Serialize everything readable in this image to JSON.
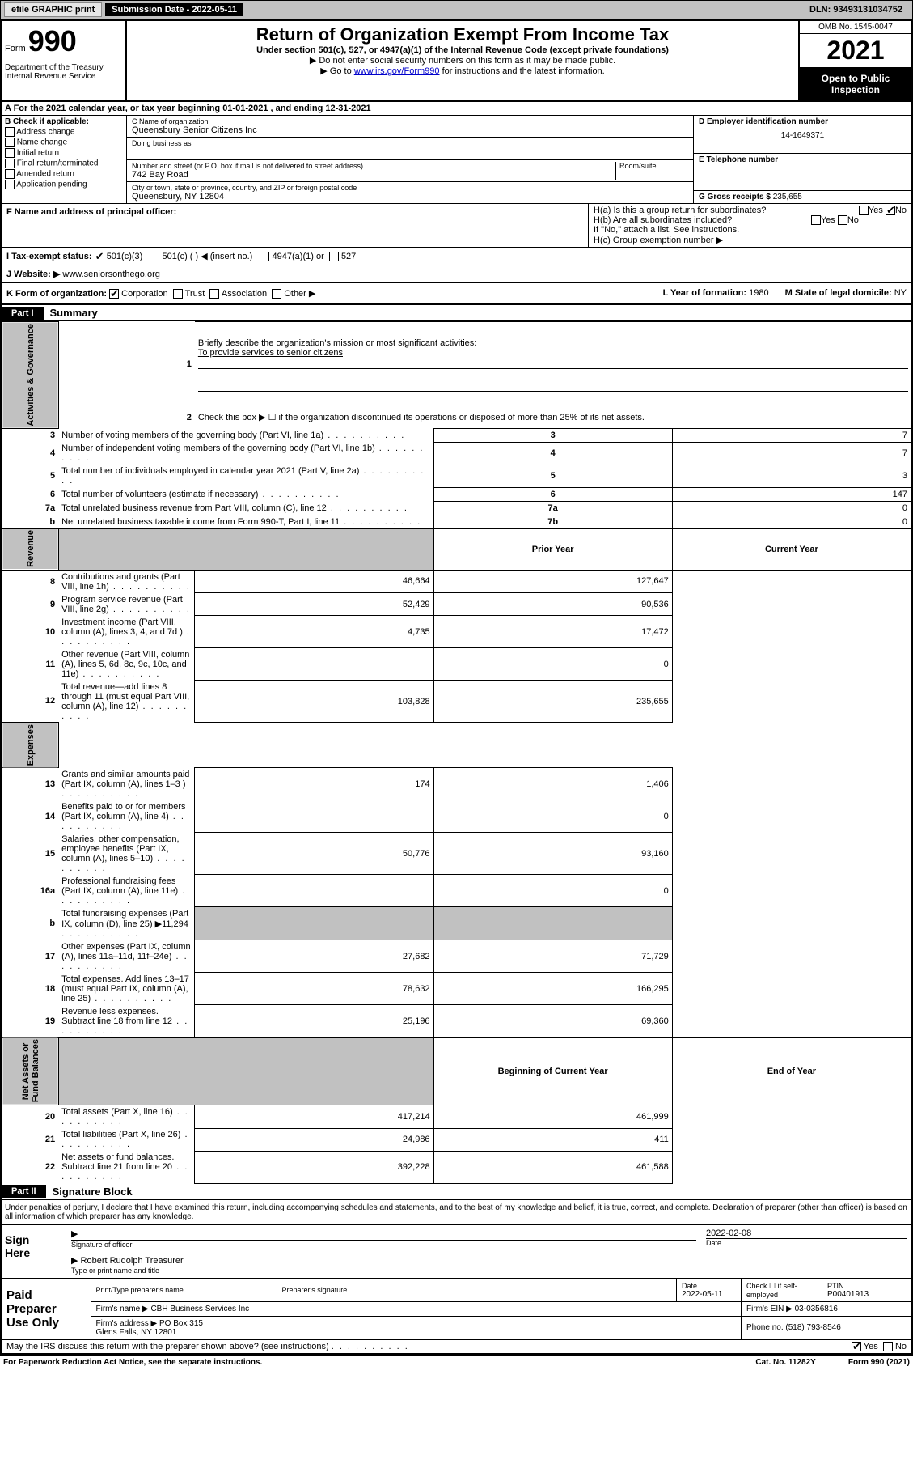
{
  "topbar": {
    "efile": "efile GRAPHIC print",
    "sub_label": "Submission Date - 2022-05-11",
    "dln": "DLN: 93493131034752"
  },
  "header": {
    "form_word": "Form",
    "form_num": "990",
    "title": "Return of Organization Exempt From Income Tax",
    "subtitle": "Under section 501(c), 527, or 4947(a)(1) of the Internal Revenue Code (except private foundations)",
    "note1": "▶ Do not enter social security numbers on this form as it may be made public.",
    "note2_pre": "▶ Go to ",
    "note2_link": "www.irs.gov/Form990",
    "note2_post": " for instructions and the latest information.",
    "dept": "Department of the Treasury\nInternal Revenue Service",
    "omb": "OMB No. 1545-0047",
    "year": "2021",
    "open_pub": "Open to Public\nInspection"
  },
  "line_a": "A For the 2021 calendar year, or tax year beginning 01-01-2021   , and ending 12-31-2021",
  "section_b": {
    "label": "B Check if applicable:",
    "items": [
      "Address change",
      "Name change",
      "Initial return",
      "Final return/terminated",
      "Amended return",
      "Application pending"
    ]
  },
  "section_c": {
    "name_label": "C Name of organization",
    "name": "Queensbury Senior Citizens Inc",
    "dba_label": "Doing business as",
    "addr_label": "Number and street (or P.O. box if mail is not delivered to street address)",
    "room_label": "Room/suite",
    "addr": "742 Bay Road",
    "city_label": "City or town, state or province, country, and ZIP or foreign postal code",
    "city": "Queensbury, NY  12804"
  },
  "section_d": {
    "label": "D Employer identification number",
    "val": "14-1649371"
  },
  "section_e": {
    "label": "E Telephone number",
    "val": ""
  },
  "section_g": {
    "label": "G Gross receipts $",
    "val": "235,655"
  },
  "section_f": {
    "label": "F Name and address of principal officer:",
    "val": ""
  },
  "section_h": {
    "ha": "H(a)  Is this a group return for subordinates?",
    "hb": "H(b)  Are all subordinates included?",
    "hb_note": "If \"No,\" attach a list. See instructions.",
    "hc": "H(c)  Group exemption number ▶",
    "yes": "Yes",
    "no": "No"
  },
  "section_i": {
    "label": "I   Tax-exempt status:",
    "opts": [
      "501(c)(3)",
      "501(c) (  ) ◀ (insert no.)",
      "4947(a)(1) or",
      "527"
    ]
  },
  "section_j": {
    "label": "J   Website: ▶",
    "val": "www.seniorsonthego.org"
  },
  "section_k": {
    "label": "K Form of organization:",
    "opts": [
      "Corporation",
      "Trust",
      "Association",
      "Other ▶"
    ]
  },
  "section_l": {
    "label": "L Year of formation:",
    "val": "1980"
  },
  "section_m": {
    "label": "M State of legal domicile:",
    "val": "NY"
  },
  "part1": {
    "header": "Part I",
    "title": "Summary",
    "q1": "Briefly describe the organization's mission or most significant activities:",
    "q1_val": "To provide services to senior citizens",
    "q2": "Check this box ▶ ☐  if the organization discontinued its operations or disposed of more than 25% of its net assets.",
    "vert_labels": [
      "Activities & Governance",
      "Revenue",
      "Expenses",
      "Net Assets or\nFund Balances"
    ],
    "col_headers": [
      "Prior Year",
      "Current Year",
      "Beginning of Current Year",
      "End of Year"
    ],
    "rows_gov": [
      {
        "n": "3",
        "d": "Number of voting members of the governing body (Part VI, line 1a)",
        "ln": "3",
        "v": "7"
      },
      {
        "n": "4",
        "d": "Number of independent voting members of the governing body (Part VI, line 1b)",
        "ln": "4",
        "v": "7"
      },
      {
        "n": "5",
        "d": "Total number of individuals employed in calendar year 2021 (Part V, line 2a)",
        "ln": "5",
        "v": "3"
      },
      {
        "n": "6",
        "d": "Total number of volunteers (estimate if necessary)",
        "ln": "6",
        "v": "147"
      },
      {
        "n": "7a",
        "d": "Total unrelated business revenue from Part VIII, column (C), line 12",
        "ln": "7a",
        "v": "0"
      },
      {
        "n": "b",
        "d": "Net unrelated business taxable income from Form 990-T, Part I, line 11",
        "ln": "7b",
        "v": "0"
      }
    ],
    "rows_rev": [
      {
        "n": "8",
        "d": "Contributions and grants (Part VIII, line 1h)",
        "py": "46,664",
        "cy": "127,647"
      },
      {
        "n": "9",
        "d": "Program service revenue (Part VIII, line 2g)",
        "py": "52,429",
        "cy": "90,536"
      },
      {
        "n": "10",
        "d": "Investment income (Part VIII, column (A), lines 3, 4, and 7d )",
        "py": "4,735",
        "cy": "17,472"
      },
      {
        "n": "11",
        "d": "Other revenue (Part VIII, column (A), lines 5, 6d, 8c, 9c, 10c, and 11e)",
        "py": "",
        "cy": "0"
      },
      {
        "n": "12",
        "d": "Total revenue—add lines 8 through 11 (must equal Part VIII, column (A), line 12)",
        "py": "103,828",
        "cy": "235,655"
      }
    ],
    "rows_exp": [
      {
        "n": "13",
        "d": "Grants and similar amounts paid (Part IX, column (A), lines 1–3 )",
        "py": "174",
        "cy": "1,406"
      },
      {
        "n": "14",
        "d": "Benefits paid to or for members (Part IX, column (A), line 4)",
        "py": "",
        "cy": "0"
      },
      {
        "n": "15",
        "d": "Salaries, other compensation, employee benefits (Part IX, column (A), lines 5–10)",
        "py": "50,776",
        "cy": "93,160"
      },
      {
        "n": "16a",
        "d": "Professional fundraising fees (Part IX, column (A), line 11e)",
        "py": "",
        "cy": "0"
      },
      {
        "n": "b",
        "d": "Total fundraising expenses (Part IX, column (D), line 25) ▶11,294",
        "py": "SHADE",
        "cy": "SHADE"
      },
      {
        "n": "17",
        "d": "Other expenses (Part IX, column (A), lines 11a–11d, 11f–24e)",
        "py": "27,682",
        "cy": "71,729"
      },
      {
        "n": "18",
        "d": "Total expenses. Add lines 13–17 (must equal Part IX, column (A), line 25)",
        "py": "78,632",
        "cy": "166,295"
      },
      {
        "n": "19",
        "d": "Revenue less expenses. Subtract line 18 from line 12",
        "py": "25,196",
        "cy": "69,360"
      }
    ],
    "rows_net": [
      {
        "n": "20",
        "d": "Total assets (Part X, line 16)",
        "py": "417,214",
        "cy": "461,999"
      },
      {
        "n": "21",
        "d": "Total liabilities (Part X, line 26)",
        "py": "24,986",
        "cy": "411"
      },
      {
        "n": "22",
        "d": "Net assets or fund balances. Subtract line 21 from line 20",
        "py": "392,228",
        "cy": "461,588"
      }
    ]
  },
  "part2": {
    "header": "Part II",
    "title": "Signature Block",
    "penalty": "Under penalties of perjury, I declare that I have examined this return, including accompanying schedules and statements, and to the best of my knowledge and belief, it is true, correct, and complete. Declaration of preparer (other than officer) is based on all information of which preparer has any knowledge.",
    "sign_here": "Sign\nHere",
    "sig_officer": "Signature of officer",
    "date": "Date",
    "sig_date": "2022-02-08",
    "name_title": "Robert Rudolph  Treasurer",
    "name_title_label": "Type or print name and title",
    "paid_prep": "Paid\nPreparer\nUse Only",
    "prep_name_label": "Print/Type preparer's name",
    "prep_sig_label": "Preparer's signature",
    "prep_date_label": "Date",
    "prep_date": "2022-05-11",
    "check_label": "Check ☐ if self-employed",
    "ptin_label": "PTIN",
    "ptin": "P00401913",
    "firm_name_label": "Firm's name   ▶",
    "firm_name": "CBH Business Services Inc",
    "firm_ein_label": "Firm's EIN ▶",
    "firm_ein": "03-0356816",
    "firm_addr_label": "Firm's address ▶",
    "firm_addr": "PO Box 315\nGlens Falls, NY  12801",
    "phone_label": "Phone no.",
    "phone": "(518) 793-8546",
    "discuss": "May the IRS discuss this return with the preparer shown above? (see instructions)",
    "yes": "Yes",
    "no": "No"
  },
  "footer": {
    "left": "For Paperwork Reduction Act Notice, see the separate instructions.",
    "mid": "Cat. No. 11282Y",
    "right": "Form 990 (2021)"
  }
}
